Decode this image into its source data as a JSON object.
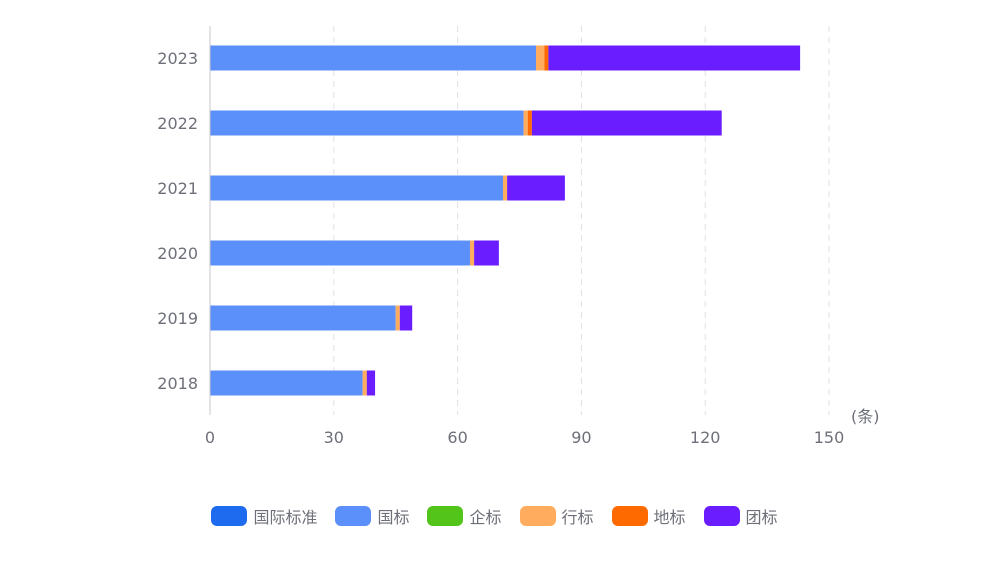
{
  "chart_data": {
    "type": "bar",
    "orientation": "horizontal",
    "stacked": true,
    "categories": [
      "2023",
      "2022",
      "2021",
      "2020",
      "2019",
      "2018"
    ],
    "series": [
      {
        "name": "国际标准",
        "color": "#1f6bf0",
        "values": [
          0,
          0,
          0,
          0,
          0,
          0
        ]
      },
      {
        "name": "国标",
        "color": "#5b8ff9",
        "values": [
          79,
          76,
          71,
          63,
          45,
          37
        ]
      },
      {
        "name": "企标",
        "color": "#52c41a",
        "values": [
          0,
          0,
          0,
          0,
          0,
          0
        ]
      },
      {
        "name": "行标",
        "color": "#ffac5e",
        "values": [
          2,
          1,
          1,
          1,
          1,
          1
        ]
      },
      {
        "name": "地标",
        "color": "#ff6a00",
        "values": [
          1,
          1,
          0,
          0,
          0,
          0
        ]
      },
      {
        "name": "团标",
        "color": "#6a1dff",
        "values": [
          61,
          46,
          14,
          6,
          3,
          2
        ]
      }
    ],
    "xlim": [
      0,
      150
    ],
    "xticks": [
      "0",
      "30",
      "60",
      "90",
      "120",
      "150"
    ],
    "unit_label": "(条)",
    "grid": "vertical dashed",
    "legend_position": "bottom"
  }
}
